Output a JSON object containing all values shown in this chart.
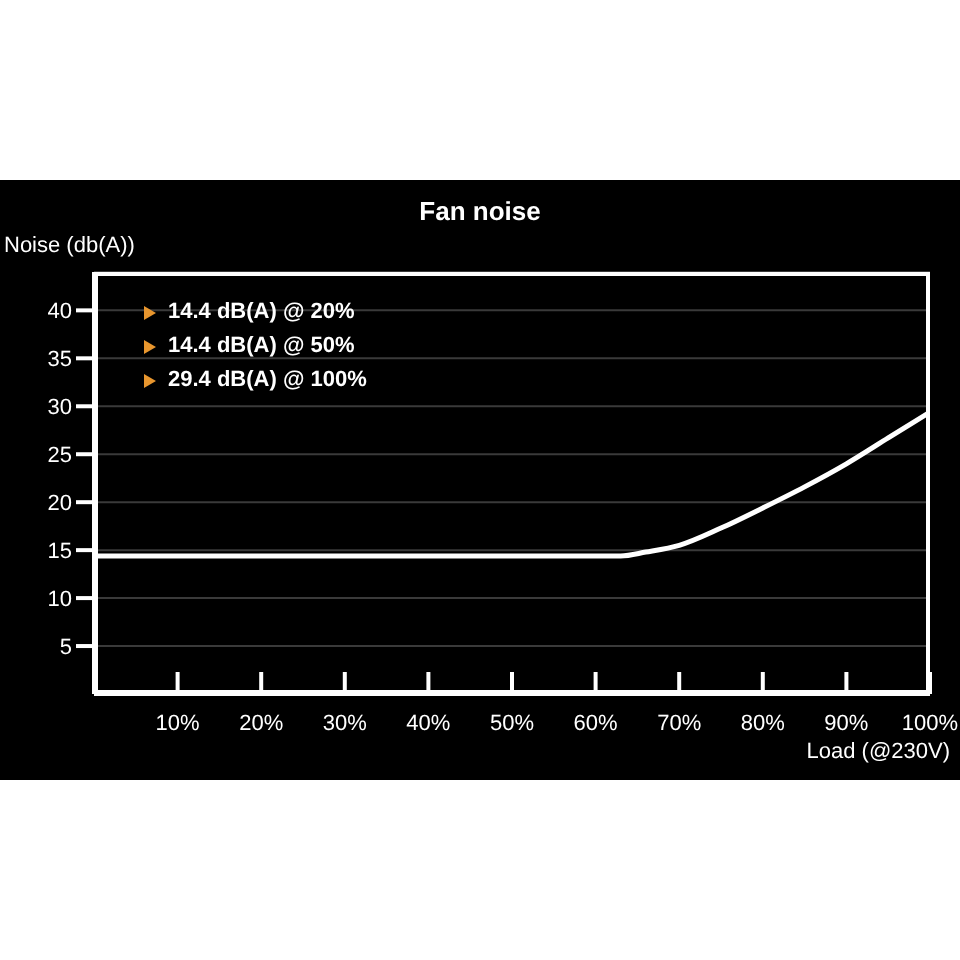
{
  "chart_data": {
    "type": "line",
    "title": "Fan noise",
    "xlabel": "Load (@230V)",
    "ylabel": "Noise (db(A))",
    "x": [
      0,
      10,
      20,
      30,
      40,
      50,
      60,
      63,
      66,
      70,
      75,
      80,
      85,
      90,
      95,
      100
    ],
    "series": [
      {
        "color": "#ffffff",
        "values": [
          14.4,
          14.4,
          14.4,
          14.4,
          14.4,
          14.4,
          14.4,
          14.4,
          14.8,
          15.5,
          17.3,
          19.4,
          21.6,
          24,
          26.7,
          29.4
        ]
      }
    ],
    "xlim": [
      0,
      100
    ],
    "ylim": [
      0,
      44
    ],
    "xticks": [
      {
        "value": 10,
        "label": "10%"
      },
      {
        "value": 20,
        "label": "20%"
      },
      {
        "value": 30,
        "label": "30%"
      },
      {
        "value": 40,
        "label": "40%"
      },
      {
        "value": 50,
        "label": "50%"
      },
      {
        "value": 60,
        "label": "60%"
      },
      {
        "value": 70,
        "label": "70%"
      },
      {
        "value": 80,
        "label": "80%"
      },
      {
        "value": 90,
        "label": "90%"
      },
      {
        "value": 100,
        "label": "100%"
      }
    ],
    "yticks": [
      5,
      10,
      15,
      20,
      25,
      30,
      35,
      40
    ],
    "grid": "y",
    "marker": "none",
    "line_style": "solid",
    "annotations": [
      "14.4 dB(A) @ 20%",
      "14.4 dB(A) @ 50%",
      "29.4 dB(A) @ 100%"
    ]
  }
}
